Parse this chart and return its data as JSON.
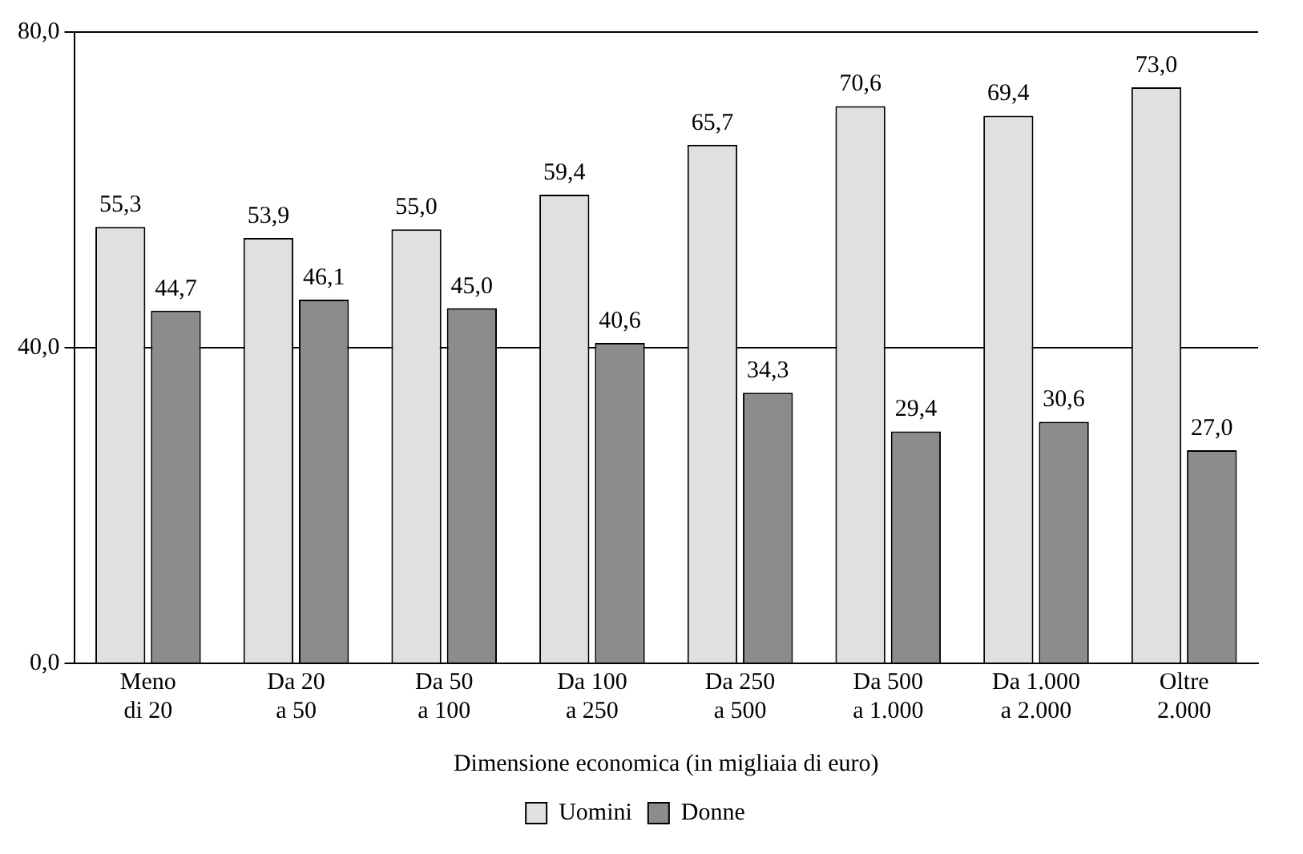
{
  "chart_data": {
    "type": "bar",
    "xlabel": "Dimensione economica (in migliaia di euro)",
    "categories": [
      "Meno\ndi 20",
      "Da 20\na 50",
      "Da 50\na 100",
      "Da 100\na 250",
      "Da 250\na 500",
      "Da 500\na 1.000",
      "Da 1.000\na 2.000",
      "Oltre\n2.000"
    ],
    "series": [
      {
        "name": "Uomini",
        "color": "#e0e0e0",
        "values": [
          55.3,
          53.9,
          55.0,
          59.4,
          65.7,
          70.6,
          69.4,
          73.0
        ],
        "value_labels": [
          "55,3",
          "53,9",
          "55,0",
          "59,4",
          "65,7",
          "70,6",
          "69,4",
          "73,0"
        ]
      },
      {
        "name": "Donne",
        "color": "#8c8c8c",
        "values": [
          44.7,
          46.1,
          45.0,
          40.6,
          34.3,
          29.4,
          30.6,
          27.0
        ],
        "value_labels": [
          "44,7",
          "46,1",
          "45,0",
          "40,6",
          "34,3",
          "29,4",
          "30,6",
          "27,0"
        ]
      }
    ],
    "ylim": [
      0,
      80
    ],
    "yticks": [
      {
        "value": 0,
        "label": "0,0"
      },
      {
        "value": 40,
        "label": "40,0"
      },
      {
        "value": 80,
        "label": "80,0"
      }
    ],
    "grid": "y",
    "legend": "bottom"
  }
}
